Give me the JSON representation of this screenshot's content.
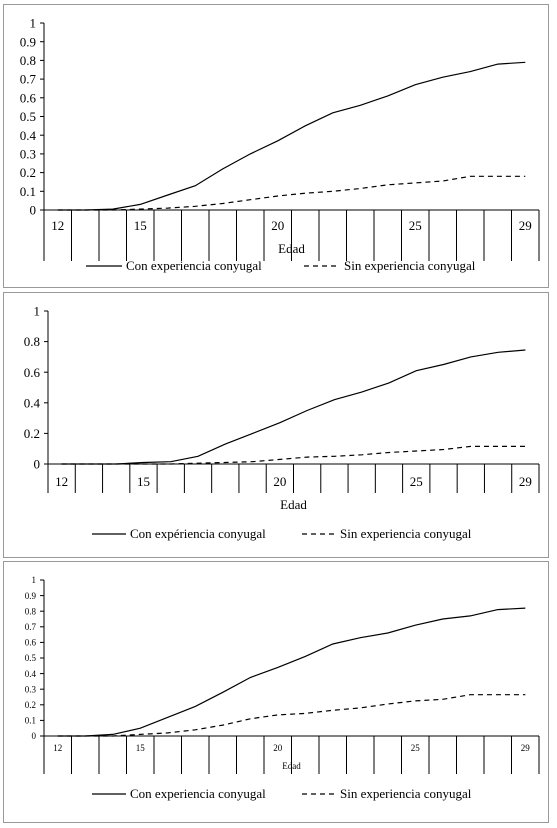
{
  "chart_data": [
    {
      "type": "line",
      "xlabel": "Edad",
      "ylabel": "",
      "ylim": [
        0,
        1
      ],
      "yticks": [
        "0",
        "0.1",
        "0.2",
        "0.3",
        "0.4",
        "0.5",
        "0.6",
        "0.7",
        "0.8",
        "0.9",
        "1"
      ],
      "xtick_labels": [
        "12",
        "15",
        "20",
        "25",
        "29"
      ],
      "x": [
        12,
        13,
        14,
        15,
        16,
        17,
        18,
        19,
        20,
        21,
        22,
        23,
        24,
        25,
        26,
        27,
        28,
        29
      ],
      "series": [
        {
          "name": "Con experiencia conyugal",
          "dash": "solid",
          "values": [
            0,
            0,
            0.005,
            0.03,
            0.08,
            0.13,
            0.22,
            0.3,
            0.37,
            0.45,
            0.52,
            0.56,
            0.61,
            0.67,
            0.71,
            0.74,
            0.78,
            0.79
          ]
        },
        {
          "name": "Sin experiencia conyugal",
          "dash": "dashed",
          "values": [
            0,
            0,
            0,
            0.005,
            0.01,
            0.02,
            0.035,
            0.055,
            0.075,
            0.09,
            0.1,
            0.115,
            0.135,
            0.145,
            0.155,
            0.18,
            0.18,
            0.18
          ]
        }
      ],
      "grid": false,
      "legend_position": "bottom"
    },
    {
      "type": "line",
      "xlabel": "Edad",
      "ylabel": "",
      "ylim": [
        0,
        1
      ],
      "yticks": [
        "0",
        "0.2",
        "0.4",
        "0.6",
        "0.8",
        "1"
      ],
      "xtick_labels": [
        "12",
        "15",
        "20",
        "25",
        "29"
      ],
      "x": [
        12,
        13,
        14,
        15,
        16,
        17,
        18,
        19,
        20,
        21,
        22,
        23,
        24,
        25,
        26,
        27,
        28,
        29
      ],
      "series": [
        {
          "name": "Con expériencia conyugal",
          "dash": "solid",
          "values": [
            0,
            0,
            0,
            0.01,
            0.015,
            0.05,
            0.13,
            0.2,
            0.27,
            0.35,
            0.42,
            0.47,
            0.53,
            0.61,
            0.65,
            0.7,
            0.73,
            0.745
          ]
        },
        {
          "name": "Sin experiencia conyugal",
          "dash": "dashed",
          "values": [
            0,
            0,
            0,
            0,
            0,
            0.005,
            0.01,
            0.015,
            0.03,
            0.045,
            0.05,
            0.06,
            0.075,
            0.085,
            0.095,
            0.115,
            0.115,
            0.115
          ]
        }
      ],
      "grid": false,
      "legend_position": "bottom"
    },
    {
      "type": "line",
      "xlabel": "Edad",
      "ylabel": "",
      "ylim": [
        0,
        1
      ],
      "yticks": [
        "0",
        "0.1",
        "0.2",
        "0.3",
        "0.4",
        "0.5",
        "0.6",
        "0.7",
        "0.8",
        "0.9",
        "1"
      ],
      "xtick_labels": [
        "12",
        "15",
        "20",
        "25",
        "29"
      ],
      "x": [
        12,
        13,
        14,
        15,
        16,
        17,
        18,
        19,
        20,
        21,
        22,
        23,
        24,
        25,
        26,
        27,
        28,
        29
      ],
      "series": [
        {
          "name": "Con experiencia conyugal",
          "dash": "solid",
          "values": [
            0,
            0,
            0.01,
            0.05,
            0.12,
            0.19,
            0.28,
            0.375,
            0.44,
            0.51,
            0.59,
            0.63,
            0.66,
            0.71,
            0.75,
            0.77,
            0.81,
            0.82
          ]
        },
        {
          "name": "Sin experiencia conyugal",
          "dash": "dashed",
          "values": [
            0,
            0,
            0,
            0.01,
            0.02,
            0.04,
            0.07,
            0.11,
            0.135,
            0.145,
            0.165,
            0.18,
            0.205,
            0.225,
            0.235,
            0.265,
            0.265,
            0.265
          ]
        }
      ],
      "grid": false,
      "legend_position": "bottom"
    }
  ]
}
